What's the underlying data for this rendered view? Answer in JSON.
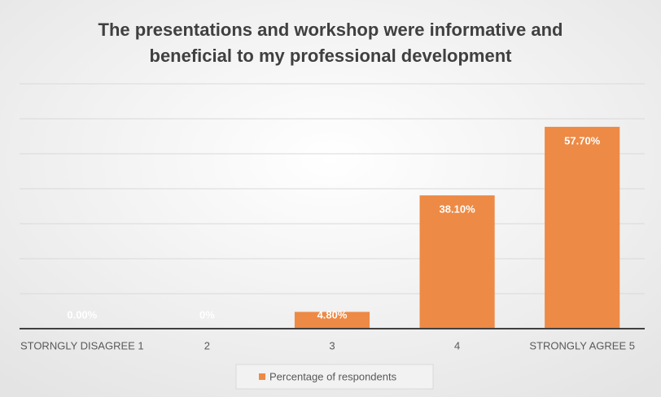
{
  "chart_data": {
    "type": "bar",
    "title": [
      "The presentations and workshop were informative and",
      "beneficial to my professional development"
    ],
    "categories": [
      "STORNGLY DISAGREE 1",
      "2",
      "3",
      "4",
      "STRONGLY AGREE 5"
    ],
    "series": [
      {
        "name": "Percentage of respondents",
        "color": "#ed8a45",
        "values": [
          0,
          0,
          4.8,
          38.1,
          57.7
        ],
        "value_labels": [
          "0.00%",
          "0%",
          "4.80%",
          "38.10%",
          "57.70%"
        ]
      }
    ],
    "ylim": [
      0,
      70
    ],
    "yticks": [
      0,
      10,
      20,
      30,
      40,
      50,
      60,
      70
    ],
    "grid": true,
    "legend": "bottom"
  }
}
